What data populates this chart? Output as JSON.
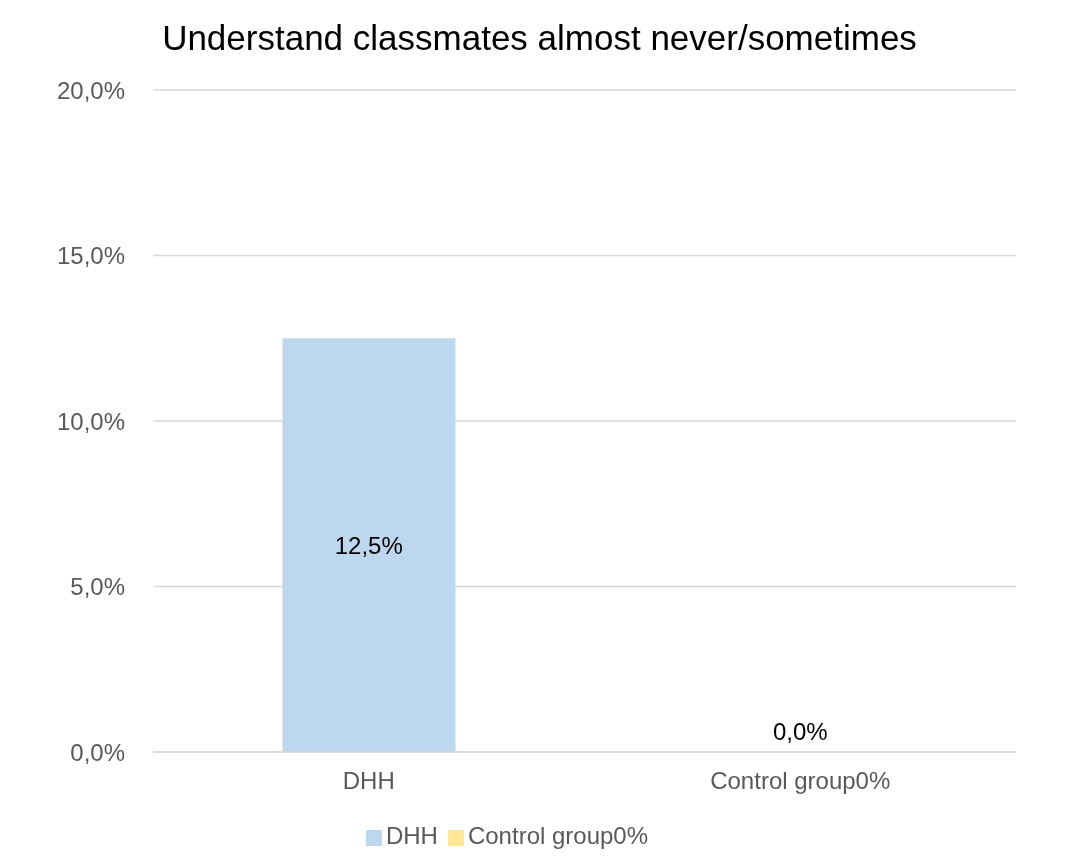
{
  "chart_data": {
    "type": "bar",
    "title": "Understand classmates almost never/sometimes",
    "categories": [
      "DHH",
      "Control group0%"
    ],
    "stacked": true,
    "series": [
      {
        "name": "DHH",
        "color": "#bdd7ee",
        "values": [
          12.5,
          null
        ],
        "value_labels": [
          "12,5%",
          null
        ]
      },
      {
        "name": "Control group0%",
        "color": "#ffe699",
        "values": [
          null,
          0
        ],
        "value_labels": [
          null,
          "0,0%"
        ]
      }
    ],
    "ylim": [
      0,
      20
    ],
    "yticks": [
      {
        "value": 0,
        "label": "0,0%"
      },
      {
        "value": 5,
        "label": "5,0%"
      },
      {
        "value": 10,
        "label": "10,0%"
      },
      {
        "value": 15,
        "label": "15,0%"
      },
      {
        "value": 20,
        "label": "20,0%"
      }
    ],
    "grid": "y",
    "legend": "bottom"
  }
}
